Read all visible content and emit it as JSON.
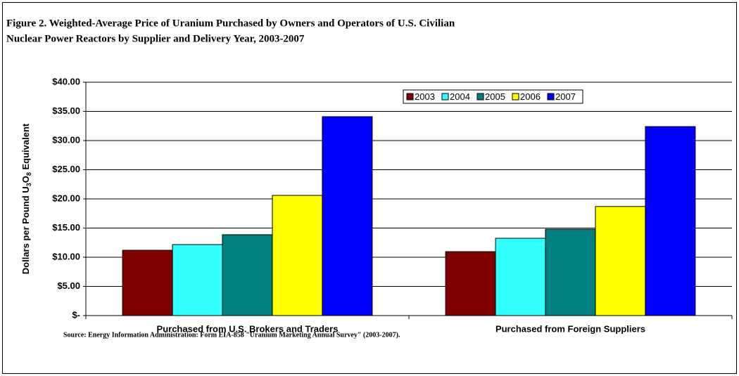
{
  "chart_data": {
    "type": "bar",
    "title": [
      "Figure 2.   Weighted-Average Price of Uranium Purchased by Owners and Operators of U.S. Civilian",
      "Nuclear Power Reactors by Supplier and Delivery Year, 2003-2007"
    ],
    "y_label": [
      "Dollars per Pound U",
      "3",
      "O",
      "8",
      " Equivalent"
    ],
    "categories": [
      "Purchased from U.S. Brokers and Traders",
      "Purchased from Foreign Suppliers"
    ],
    "series": [
      {
        "name": "2003",
        "color": "#800000",
        "values": [
          11.2,
          10.96
        ]
      },
      {
        "name": "2004",
        "color": "#33ffff",
        "values": [
          12.17,
          13.25
        ]
      },
      {
        "name": "2005",
        "color": "#008080",
        "values": [
          13.86,
          14.8
        ]
      },
      {
        "name": "2006",
        "color": "#ffff00",
        "values": [
          20.6,
          18.7
        ]
      },
      {
        "name": "2007",
        "color": "#0000ff",
        "values": [
          34.1,
          32.4
        ]
      }
    ],
    "ylim": [
      0,
      40
    ],
    "yticks": [
      {
        "value": 0,
        "label": "$-"
      },
      {
        "value": 5,
        "label": "$5.00"
      },
      {
        "value": 10,
        "label": "$10.00"
      },
      {
        "value": 15,
        "label": "$15.00"
      },
      {
        "value": 20,
        "label": "$20.00"
      },
      {
        "value": 25,
        "label": "$25.00"
      },
      {
        "value": 30,
        "label": "$30.00"
      },
      {
        "value": 35,
        "label": "$35.00"
      },
      {
        "value": 40,
        "label": "$40.00"
      }
    ],
    "grid": true,
    "legend": "top-right",
    "source": "Source:  Energy Information Administration: Form EIA-858 \"Uranium Marketing Annual Survey\"  (2003-2007)."
  }
}
